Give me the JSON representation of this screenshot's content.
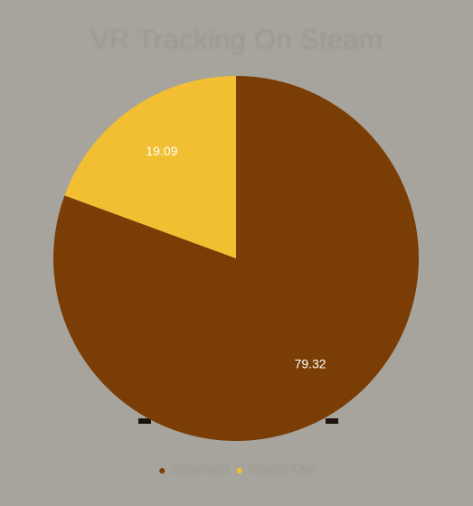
{
  "chart_data": {
    "type": "pie",
    "title": "VR Tracking On Steam",
    "categories": [
      "Steamed",
      "Inside-Out"
    ],
    "values": [
      79.32,
      19.09
    ],
    "colors": [
      "#7a3d05",
      "#f2bf33"
    ],
    "legend_position": "bottom",
    "legend_marker": "circle"
  }
}
